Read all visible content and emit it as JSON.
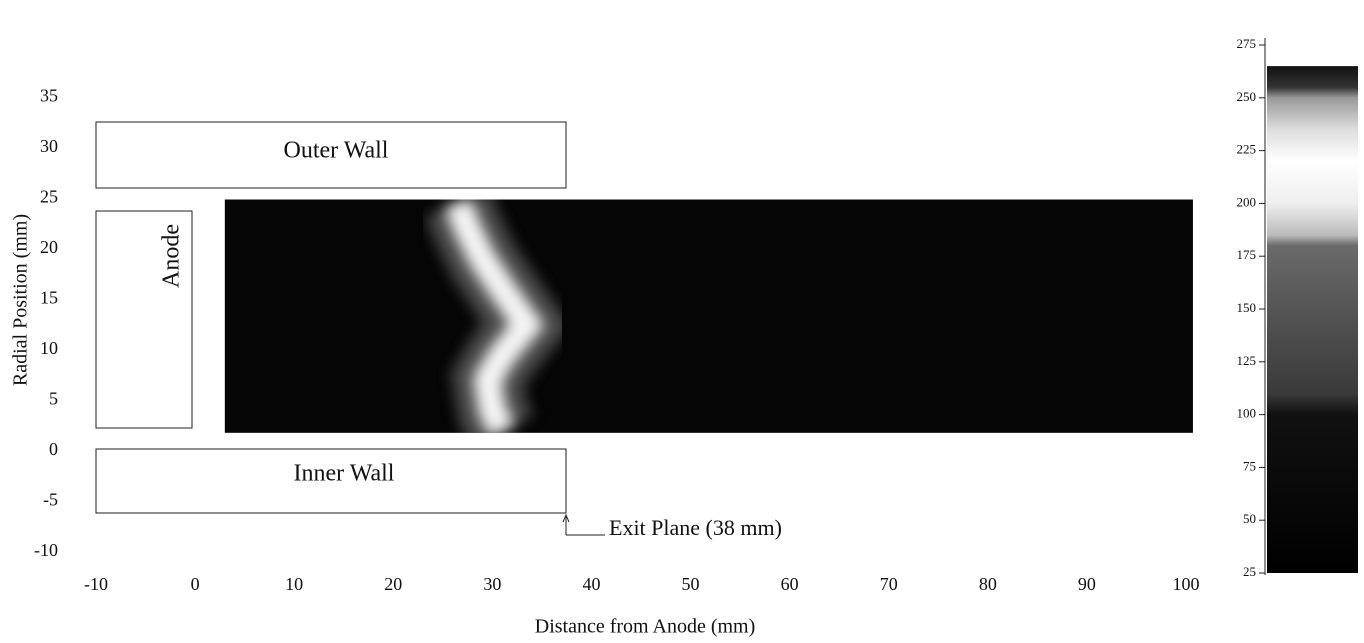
{
  "chart_data": {
    "type": "heatmap",
    "x_label": "Distance from Anode (mm)",
    "y_label": "Radial Position (mm)",
    "xlim": [
      -10,
      100
    ],
    "ylim": [
      -10,
      35
    ],
    "xticks": [
      -10,
      0,
      10,
      20,
      30,
      40,
      50,
      60,
      70,
      80,
      90,
      100
    ],
    "yticks": [
      -10,
      -5,
      0,
      5,
      10,
      15,
      20,
      25,
      30,
      35
    ],
    "extent": {
      "x": [
        3,
        100.7
      ],
      "y": [
        1.8,
        24.9
      ]
    },
    "background_color": "#050505",
    "ridge": {
      "x": [
        26.5,
        27.5,
        29,
        31,
        33.5,
        31,
        29.5,
        30,
        31
      ],
      "y": [
        24.5,
        22,
        19,
        16,
        12.5,
        9.5,
        7,
        4,
        2
      ]
    },
    "annotations": {
      "outer_wall": "Outer Wall",
      "inner_wall": "Inner Wall",
      "anode": "Anode",
      "exit_plane": "Exit Plane (38 mm)"
    },
    "colorbar": {
      "lim": [
        25,
        275
      ],
      "ticks": [
        25,
        50,
        75,
        100,
        125,
        150,
        175,
        200,
        225,
        250,
        275
      ],
      "stops": [
        {
          "value": 25,
          "color": "#000000"
        },
        {
          "value": 100,
          "color": "#111111"
        },
        {
          "value": 110,
          "color": "#3a3a3a"
        },
        {
          "value": 150,
          "color": "#555555"
        },
        {
          "value": 180,
          "color": "#6a6a6a"
        },
        {
          "value": 185,
          "color": "#bbbbbb"
        },
        {
          "value": 200,
          "color": "#eeeeee"
        },
        {
          "value": 220,
          "color": "#ffffff"
        },
        {
          "value": 235,
          "color": "#dddddd"
        },
        {
          "value": 250,
          "color": "#999999"
        },
        {
          "value": 255,
          "color": "#333333"
        },
        {
          "value": 265,
          "color": "#111111"
        }
      ]
    }
  }
}
